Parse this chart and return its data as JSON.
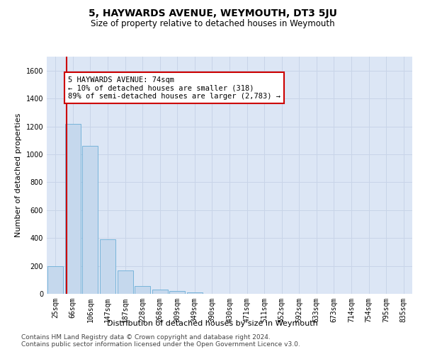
{
  "title": "5, HAYWARDS AVENUE, WEYMOUTH, DT3 5JU",
  "subtitle": "Size of property relative to detached houses in Weymouth",
  "xlabel": "Distribution of detached houses by size in Weymouth",
  "ylabel": "Number of detached properties",
  "bar_labels": [
    "25sqm",
    "66sqm",
    "106sqm",
    "147sqm",
    "187sqm",
    "228sqm",
    "268sqm",
    "309sqm",
    "349sqm",
    "390sqm",
    "430sqm",
    "471sqm",
    "511sqm",
    "552sqm",
    "592sqm",
    "633sqm",
    "673sqm",
    "714sqm",
    "754sqm",
    "795sqm",
    "835sqm"
  ],
  "bar_values": [
    200,
    1220,
    1060,
    390,
    165,
    55,
    30,
    20,
    10,
    0,
    0,
    0,
    0,
    0,
    0,
    0,
    0,
    0,
    0,
    0,
    0
  ],
  "bar_color": "#c5d8ed",
  "bar_edge_color": "#6aaed6",
  "annotation_text": "5 HAYWARDS AVENUE: 74sqm\n← 10% of detached houses are smaller (318)\n89% of semi-detached houses are larger (2,783) →",
  "annotation_box_color": "#ffffff",
  "annotation_box_edge_color": "#cc0000",
  "vline_color": "#cc0000",
  "vline_x": 0.62,
  "ylim": [
    0,
    1700
  ],
  "yticks": [
    0,
    200,
    400,
    600,
    800,
    1000,
    1200,
    1400,
    1600
  ],
  "grid_color": "#c8d4e8",
  "background_color": "#dce6f5",
  "footer_line1": "Contains HM Land Registry data © Crown copyright and database right 2024.",
  "footer_line2": "Contains public sector information licensed under the Open Government Licence v3.0.",
  "title_fontsize": 10,
  "subtitle_fontsize": 8.5,
  "xlabel_fontsize": 8,
  "ylabel_fontsize": 8,
  "tick_fontsize": 7,
  "annotation_fontsize": 7.5,
  "footer_fontsize": 6.5
}
